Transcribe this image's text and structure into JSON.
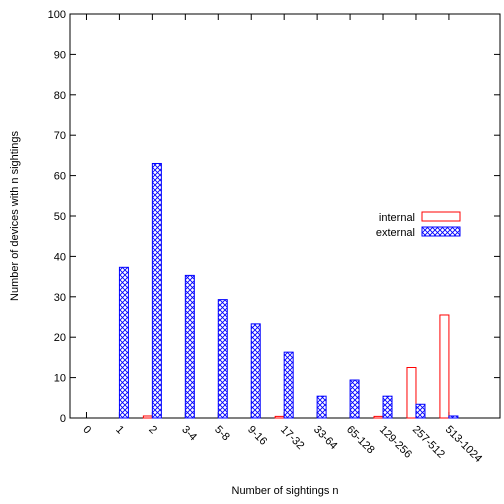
{
  "chart_data": {
    "type": "bar",
    "title": "",
    "xlabel": "Number of sightings n",
    "ylabel": "Number of devices with n sightings",
    "categories": [
      "0",
      "1",
      "2",
      "3-4",
      "5-8",
      "9-16",
      "17-32",
      "33-64",
      "65-128",
      "129-256",
      "257-512",
      "513-1024"
    ],
    "ylim": [
      0,
      100
    ],
    "yticks": [
      "0",
      "10",
      "20",
      "30",
      "40",
      "50",
      "60",
      "70",
      "80",
      "90",
      "100"
    ],
    "grid": false,
    "legend_position": "right",
    "series": [
      {
        "name": "internal",
        "color": "#ff0000",
        "pattern": "none",
        "values": [
          0,
          0,
          0.5,
          0,
          0,
          0,
          0.4,
          0,
          0,
          0.4,
          12.5,
          25.5
        ]
      },
      {
        "name": "external",
        "color": "#0000ff",
        "pattern": "crosshatch",
        "values": [
          0,
          37.3,
          63.0,
          35.3,
          29.3,
          23.3,
          16.3,
          5.4,
          9.4,
          5.4,
          3.4,
          0.5
        ]
      }
    ]
  }
}
